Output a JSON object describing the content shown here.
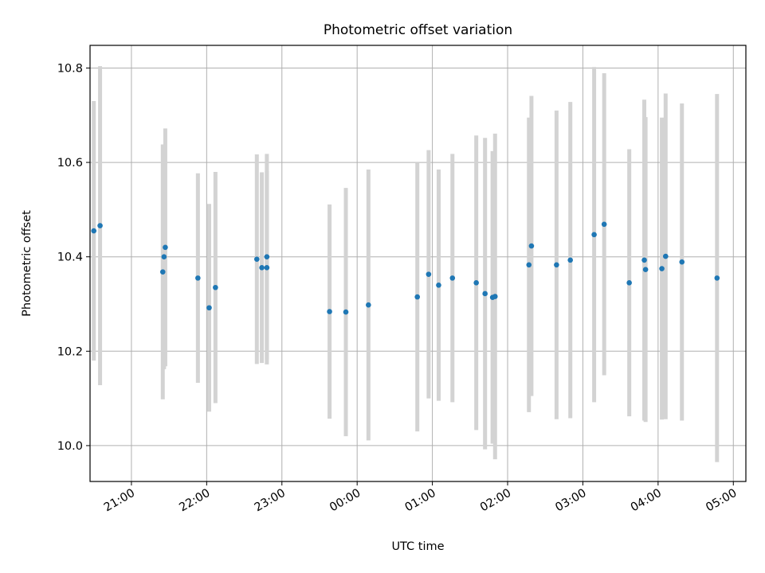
{
  "chart_data": {
    "type": "scatter",
    "title": "Photometric offset variation",
    "xlabel": "UTC time",
    "ylabel": "Photometric offset",
    "x_ticks": [
      "21:00",
      "22:00",
      "23:00",
      "00:00",
      "01:00",
      "02:00",
      "03:00",
      "04:00",
      "05:00"
    ],
    "y_ticks": [
      "10.0",
      "10.2",
      "10.4",
      "10.6",
      "10.8"
    ],
    "x_unit": "UTC time (HH:MM)",
    "xlim": [
      "20:27",
      "05:10"
    ],
    "ylim": [
      9.924,
      10.848
    ],
    "grid": true,
    "colors": {
      "points": "#1f77b4",
      "error_bars": "#d3d3d3",
      "grid": "#b0b0b0"
    },
    "series": [
      {
        "error_bar_type": "symmetric vertical",
        "points": [
          {
            "x": "20:30",
            "y": 10.455,
            "err": 0.275
          },
          {
            "x": "20:35",
            "y": 10.466,
            "err": 0.338
          },
          {
            "x": "21:25",
            "y": 10.368,
            "err": 0.27
          },
          {
            "x": "21:26",
            "y": 10.4,
            "err": 0.238
          },
          {
            "x": "21:27",
            "y": 10.42,
            "err": 0.252
          },
          {
            "x": "21:53",
            "y": 10.355,
            "err": 0.222
          },
          {
            "x": "22:02",
            "y": 10.292,
            "err": 0.22
          },
          {
            "x": "22:07",
            "y": 10.335,
            "err": 0.245
          },
          {
            "x": "22:40",
            "y": 10.395,
            "err": 0.222
          },
          {
            "x": "22:44",
            "y": 10.377,
            "err": 0.202
          },
          {
            "x": "22:48",
            "y": 10.377,
            "err": 0.205
          },
          {
            "x": "22:48",
            "y": 10.4,
            "err": 0.218
          },
          {
            "x": "23:38",
            "y": 10.284,
            "err": 0.227
          },
          {
            "x": "23:51",
            "y": 10.283,
            "err": 0.263
          },
          {
            "x": "00:09",
            "y": 10.298,
            "err": 0.287
          },
          {
            "x": "00:48",
            "y": 10.315,
            "err": 0.285
          },
          {
            "x": "00:57",
            "y": 10.363,
            "err": 0.263
          },
          {
            "x": "01:05",
            "y": 10.34,
            "err": 0.245
          },
          {
            "x": "01:16",
            "y": 10.355,
            "err": 0.263
          },
          {
            "x": "01:35",
            "y": 10.345,
            "err": 0.312
          },
          {
            "x": "01:42",
            "y": 10.322,
            "err": 0.33
          },
          {
            "x": "01:48",
            "y": 10.314,
            "err": 0.31
          },
          {
            "x": "01:50",
            "y": 10.316,
            "err": 0.345
          },
          {
            "x": "02:17",
            "y": 10.383,
            "err": 0.312
          },
          {
            "x": "02:19",
            "y": 10.423,
            "err": 0.318
          },
          {
            "x": "02:39",
            "y": 10.383,
            "err": 0.327
          },
          {
            "x": "02:50",
            "y": 10.393,
            "err": 0.335
          },
          {
            "x": "03:09",
            "y": 10.447,
            "err": 0.355
          },
          {
            "x": "03:17",
            "y": 10.469,
            "err": 0.32
          },
          {
            "x": "03:37",
            "y": 10.345,
            "err": 0.283
          },
          {
            "x": "03:49",
            "y": 10.393,
            "err": 0.34
          },
          {
            "x": "03:50",
            "y": 10.373,
            "err": 0.323
          },
          {
            "x": "04:03",
            "y": 10.375,
            "err": 0.32
          },
          {
            "x": "04:06",
            "y": 10.401,
            "err": 0.345
          },
          {
            "x": "04:19",
            "y": 10.389,
            "err": 0.336
          },
          {
            "x": "04:47",
            "y": 10.355,
            "err": 0.39
          }
        ]
      }
    ]
  }
}
